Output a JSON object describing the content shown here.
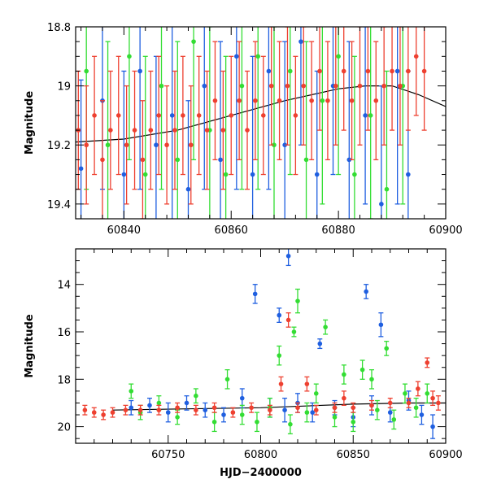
{
  "chart_data": [
    {
      "type": "scatter",
      "title": "",
      "xlabel": "",
      "ylabel": "Magnitude",
      "xlim": [
        60831,
        60900
      ],
      "ylim": [
        19.45,
        18.8
      ],
      "y_inverted": true,
      "x_ticks": [
        60840,
        60860,
        60880,
        60900
      ],
      "y_ticks": [
        18.8,
        19,
        19.2,
        19.4
      ],
      "grid": false,
      "legend": "none",
      "error_bars": true,
      "series": [
        {
          "color": "#1f5fe0",
          "points": [
            [
              60832,
              19.28,
              0.3
            ],
            [
              60836,
              19.05,
              0.3
            ],
            [
              60840,
              19.3,
              0.35
            ],
            [
              60843,
              18.95,
              0.4
            ],
            [
              60846,
              19.2,
              0.3
            ],
            [
              60849,
              19.1,
              0.4
            ],
            [
              60852,
              19.35,
              0.3
            ],
            [
              60855,
              19.0,
              0.35
            ],
            [
              60858,
              19.25,
              0.4
            ],
            [
              60861,
              18.9,
              0.45
            ],
            [
              60864,
              19.3,
              0.4
            ],
            [
              60867,
              18.95,
              0.4
            ],
            [
              60870,
              19.2,
              0.35
            ],
            [
              60873,
              18.85,
              0.35
            ],
            [
              60876,
              19.3,
              0.35
            ],
            [
              60879,
              19.0,
              0.3
            ],
            [
              60882,
              19.25,
              0.4
            ],
            [
              60885,
              19.1,
              0.3
            ],
            [
              60888,
              19.4,
              0.4
            ],
            [
              60891,
              18.95,
              0.45
            ],
            [
              60893,
              19.3,
              0.35
            ]
          ]
        },
        {
          "color": "#33dd33",
          "points": [
            [
              60833,
              18.95,
              0.4
            ],
            [
              60837,
              19.2,
              0.35
            ],
            [
              60841,
              18.9,
              0.35
            ],
            [
              60844,
              19.3,
              0.4
            ],
            [
              60847,
              19.0,
              0.35
            ],
            [
              60850,
              19.25,
              0.4
            ],
            [
              60853,
              18.85,
              0.4
            ],
            [
              60856,
              19.15,
              0.35
            ],
            [
              60859,
              19.3,
              0.4
            ],
            [
              60862,
              19.0,
              0.35
            ],
            [
              60865,
              18.9,
              0.45
            ],
            [
              60868,
              19.2,
              0.4
            ],
            [
              60871,
              18.95,
              0.35
            ],
            [
              60874,
              19.25,
              0.4
            ],
            [
              60877,
              19.05,
              0.35
            ],
            [
              60880,
              18.9,
              0.4
            ],
            [
              60883,
              19.3,
              0.4
            ],
            [
              60886,
              19.1,
              0.35
            ],
            [
              60889,
              19.35,
              0.4
            ],
            [
              60892,
              19.0,
              0.4
            ]
          ]
        },
        {
          "color": "#ee4030",
          "points": [
            [
              60831.5,
              19.15,
              0.2
            ],
            [
              60833,
              19.2,
              0.2
            ],
            [
              60834.5,
              19.1,
              0.2
            ],
            [
              60836,
              19.25,
              0.2
            ],
            [
              60837.5,
              19.15,
              0.2
            ],
            [
              60839,
              19.1,
              0.2
            ],
            [
              60840.5,
              19.2,
              0.2
            ],
            [
              60842,
              19.15,
              0.2
            ],
            [
              60843.5,
              19.25,
              0.2
            ],
            [
              60845,
              19.15,
              0.2
            ],
            [
              60846.5,
              19.1,
              0.2
            ],
            [
              60848,
              19.2,
              0.2
            ],
            [
              60849.5,
              19.15,
              0.2
            ],
            [
              60851,
              19.1,
              0.2
            ],
            [
              60852.5,
              19.2,
              0.2
            ],
            [
              60854,
              19.1,
              0.2
            ],
            [
              60855.5,
              19.15,
              0.2
            ],
            [
              60857,
              19.05,
              0.2
            ],
            [
              60858.5,
              19.15,
              0.2
            ],
            [
              60860,
              19.1,
              0.2
            ],
            [
              60861.5,
              19.05,
              0.2
            ],
            [
              60863,
              19.15,
              0.2
            ],
            [
              60864.5,
              19.05,
              0.2
            ],
            [
              60866,
              19.1,
              0.2
            ],
            [
              60867.5,
              19.0,
              0.2
            ],
            [
              60869,
              19.05,
              0.2
            ],
            [
              60870.5,
              19.0,
              0.2
            ],
            [
              60872,
              19.1,
              0.2
            ],
            [
              60873.5,
              19.0,
              0.2
            ],
            [
              60875,
              19.05,
              0.2
            ],
            [
              60876.5,
              18.95,
              0.2
            ],
            [
              60878,
              19.05,
              0.2
            ],
            [
              60879.5,
              19.0,
              0.2
            ],
            [
              60881,
              18.95,
              0.2
            ],
            [
              60882.5,
              19.05,
              0.2
            ],
            [
              60884,
              19.0,
              0.2
            ],
            [
              60885.5,
              18.95,
              0.2
            ],
            [
              60887,
              19.05,
              0.2
            ],
            [
              60888.5,
              19.0,
              0.2
            ],
            [
              60890,
              18.95,
              0.2
            ],
            [
              60891.5,
              19.0,
              0.2
            ],
            [
              60893,
              18.95,
              0.2
            ],
            [
              60894.5,
              18.9,
              0.2
            ],
            [
              60896,
              18.95,
              0.2
            ]
          ]
        }
      ],
      "trend_curve": [
        [
          60831,
          19.19
        ],
        [
          60840,
          19.18
        ],
        [
          60850,
          19.15
        ],
        [
          60860,
          19.1
        ],
        [
          60870,
          19.05
        ],
        [
          60880,
          19.01
        ],
        [
          60885,
          19.0
        ],
        [
          60890,
          19.0
        ],
        [
          60895,
          19.03
        ],
        [
          60900,
          19.07
        ]
      ]
    },
    {
      "type": "scatter",
      "title": "",
      "xlabel": "HJD−2400000",
      "ylabel": "Magnitude",
      "xlim": [
        60700,
        60900
      ],
      "ylim": [
        20.7,
        12.5
      ],
      "y_inverted": true,
      "x_ticks": [
        60750,
        60800,
        60850,
        60900
      ],
      "y_ticks": [
        14,
        16,
        18,
        20
      ],
      "grid": false,
      "legend": "none",
      "error_bars": true,
      "series": [
        {
          "color": "#1f5fe0",
          "points": [
            [
              60730,
              19.2,
              0.3
            ],
            [
              60740,
              19.1,
              0.3
            ],
            [
              60750,
              19.4,
              0.4
            ],
            [
              60760,
              19.0,
              0.3
            ],
            [
              60770,
              19.3,
              0.3
            ],
            [
              60780,
              19.5,
              0.3
            ],
            [
              60790,
              18.8,
              0.4
            ],
            [
              60797,
              14.4,
              0.4
            ],
            [
              60805,
              19.2,
              0.4
            ],
            [
              60810,
              15.3,
              0.3
            ],
            [
              60813,
              19.3,
              0.5
            ],
            [
              60815,
              12.8,
              0.4
            ],
            [
              60820,
              19.0,
              0.4
            ],
            [
              60828,
              19.4,
              0.4
            ],
            [
              60832,
              16.5,
              0.2
            ],
            [
              60840,
              19.2,
              0.3
            ],
            [
              60850,
              19.6,
              0.4
            ],
            [
              60857,
              14.3,
              0.3
            ],
            [
              60860,
              19.1,
              0.4
            ],
            [
              60865,
              15.7,
              0.5
            ],
            [
              60870,
              19.4,
              0.4
            ],
            [
              60880,
              18.9,
              0.4
            ],
            [
              60887,
              19.5,
              0.4
            ],
            [
              60893,
              20.0,
              0.5
            ]
          ]
        },
        {
          "color": "#33dd33",
          "points": [
            [
              60730,
              18.5,
              0.3
            ],
            [
              60735,
              19.4,
              0.3
            ],
            [
              60745,
              19.0,
              0.3
            ],
            [
              60755,
              19.6,
              0.3
            ],
            [
              60765,
              18.7,
              0.3
            ],
            [
              60775,
              19.8,
              0.4
            ],
            [
              60782,
              18.0,
              0.4
            ],
            [
              60790,
              19.5,
              0.4
            ],
            [
              60798,
              19.8,
              0.4
            ],
            [
              60805,
              19.2,
              0.4
            ],
            [
              60810,
              17.0,
              0.4
            ],
            [
              60816,
              19.9,
              0.4
            ],
            [
              60818,
              16.0,
              0.2
            ],
            [
              60820,
              14.7,
              0.5
            ],
            [
              60825,
              19.4,
              0.4
            ],
            [
              60830,
              18.6,
              0.4
            ],
            [
              60835,
              15.8,
              0.3
            ],
            [
              60840,
              19.6,
              0.4
            ],
            [
              60845,
              17.8,
              0.4
            ],
            [
              60850,
              19.8,
              0.4
            ],
            [
              60855,
              17.6,
              0.4
            ],
            [
              60860,
              18.0,
              0.4
            ],
            [
              60863,
              19.3,
              0.4
            ],
            [
              60868,
              16.7,
              0.3
            ],
            [
              60872,
              19.7,
              0.4
            ],
            [
              60878,
              18.6,
              0.4
            ],
            [
              60884,
              19.2,
              0.4
            ],
            [
              60890,
              18.6,
              0.4
            ]
          ]
        },
        {
          "color": "#ee4030",
          "points": [
            [
              60705,
              19.3,
              0.2
            ],
            [
              60710,
              19.4,
              0.2
            ],
            [
              60715,
              19.5,
              0.2
            ],
            [
              60720,
              19.4,
              0.2
            ],
            [
              60727,
              19.3,
              0.2
            ],
            [
              60735,
              19.3,
              0.2
            ],
            [
              60745,
              19.3,
              0.2
            ],
            [
              60755,
              19.2,
              0.2
            ],
            [
              60765,
              19.3,
              0.2
            ],
            [
              60775,
              19.2,
              0.2
            ],
            [
              60785,
              19.4,
              0.2
            ],
            [
              60795,
              19.2,
              0.2
            ],
            [
              60805,
              19.3,
              0.2
            ],
            [
              60811,
              18.2,
              0.3
            ],
            [
              60815,
              15.5,
              0.3
            ],
            [
              60820,
              19.2,
              0.2
            ],
            [
              60825,
              18.2,
              0.3
            ],
            [
              60830,
              19.3,
              0.2
            ],
            [
              60840,
              19.2,
              0.2
            ],
            [
              60845,
              18.8,
              0.3
            ],
            [
              60850,
              19.2,
              0.2
            ],
            [
              60860,
              19.1,
              0.2
            ],
            [
              60870,
              19.0,
              0.2
            ],
            [
              60880,
              19.0,
              0.2
            ],
            [
              60885,
              18.4,
              0.3
            ],
            [
              60890,
              17.3,
              0.2
            ],
            [
              60893,
              18.8,
              0.3
            ],
            [
              60896,
              19.0,
              0.3
            ]
          ]
        }
      ],
      "trend_curve": [
        [
          60720,
          19.3
        ],
        [
          60760,
          19.25
        ],
        [
          60800,
          19.2
        ],
        [
          60850,
          19.05
        ],
        [
          60880,
          19.0
        ],
        [
          60900,
          19.0
        ]
      ]
    }
  ]
}
